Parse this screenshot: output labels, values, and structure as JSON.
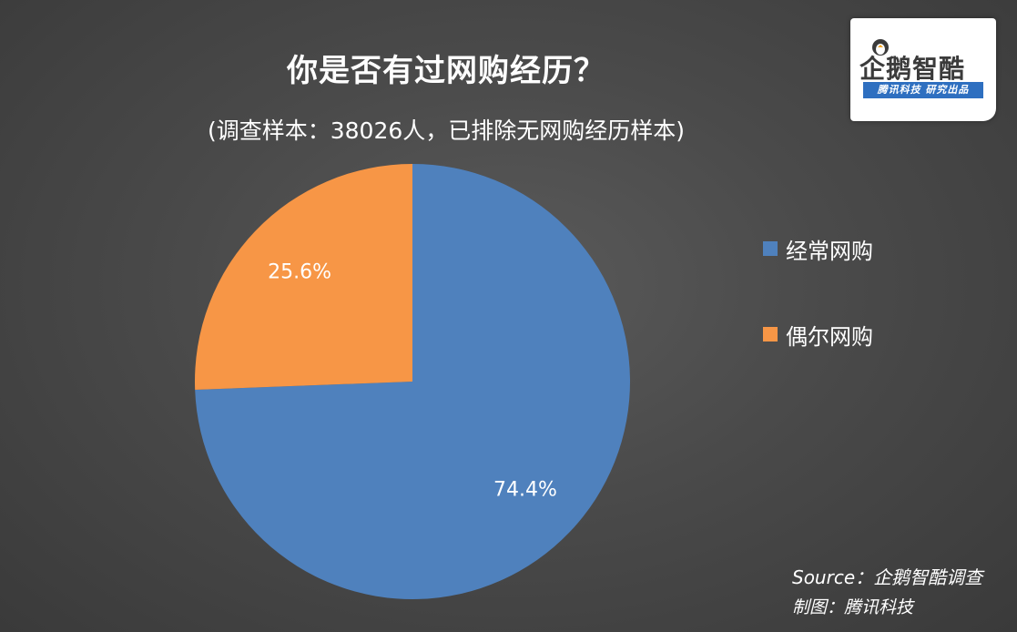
{
  "chart_data": {
    "type": "pie",
    "title": "你是否有过网购经历？",
    "subtitle": "(调查样本：38026人，已排除无网购经历样本)",
    "slices": [
      {
        "name": "经常网购",
        "value": 74.4,
        "label": "74.4%",
        "color": "#4f81bd"
      },
      {
        "name": "偶尔网购",
        "value": 25.6,
        "label": "25.6%",
        "color": "#f79646"
      }
    ],
    "legend_position": "right"
  },
  "logo": {
    "name": "企鹅智酷",
    "tagline": "腾讯科技  研究出品"
  },
  "footer": {
    "source": "Source：企鹅智酷调查",
    "credit": "制图：腾讯科技"
  }
}
